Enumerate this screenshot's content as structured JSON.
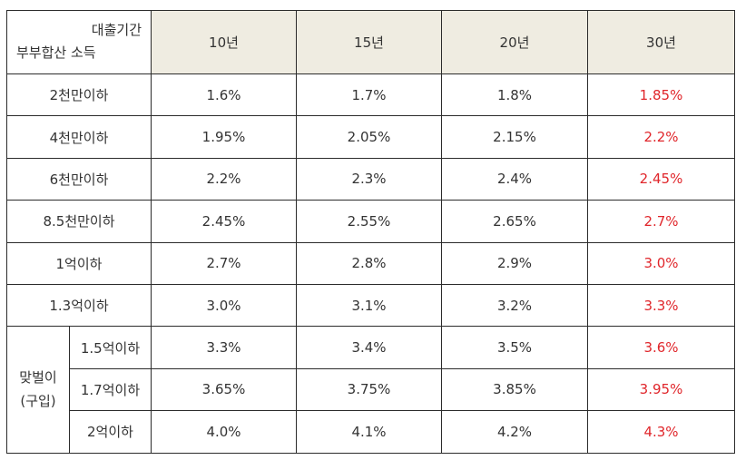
{
  "header": {
    "corner_top": "대출기간",
    "corner_bottom": "부부합산 소득",
    "periods": [
      "10년",
      "15년",
      "20년",
      "30년"
    ]
  },
  "rows": [
    {
      "label": "2천만이하",
      "values": [
        "1.6%",
        "1.7%",
        "1.8%",
        "1.85%"
      ]
    },
    {
      "label": "4천만이하",
      "values": [
        "1.95%",
        "2.05%",
        "2.15%",
        "2.2%"
      ]
    },
    {
      "label": "6천만이하",
      "values": [
        "2.2%",
        "2.3%",
        "2.4%",
        "2.45%"
      ]
    },
    {
      "label": "8.5천만이하",
      "values": [
        "2.45%",
        "2.55%",
        "2.65%",
        "2.7%"
      ]
    },
    {
      "label": "1억이하",
      "values": [
        "2.7%",
        "2.8%",
        "2.9%",
        "3.0%"
      ]
    },
    {
      "label": "1.3억이하",
      "values": [
        "3.0%",
        "3.1%",
        "3.2%",
        "3.3%"
      ]
    }
  ],
  "group": {
    "label_line1": "맞벌이",
    "label_line2": "(구입)",
    "rows": [
      {
        "label": "1.5억이하",
        "values": [
          "3.3%",
          "3.4%",
          "3.5%",
          "3.6%"
        ]
      },
      {
        "label": "1.7억이하",
        "values": [
          "3.65%",
          "3.75%",
          "3.85%",
          "3.95%"
        ]
      },
      {
        "label": "2억이하",
        "values": [
          "4.0%",
          "4.1%",
          "4.2%",
          "4.3%"
        ]
      }
    ]
  },
  "colors": {
    "header_bg": "#efece1",
    "highlight_text": "#e0262b",
    "text": "#333333",
    "border": "#2b2b2b"
  }
}
